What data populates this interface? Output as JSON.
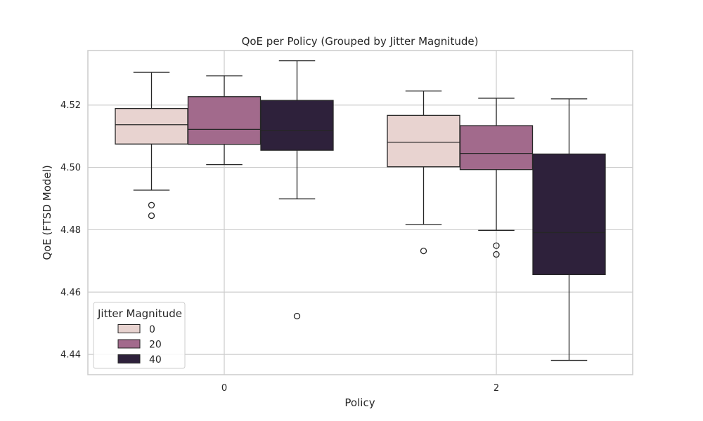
{
  "chart_data": {
    "type": "box",
    "title": "QoE per Policy (Grouped by Jitter Magnitude)",
    "xlabel": "Policy",
    "ylabel": "QoE (FTSD Model)",
    "categories": [
      "0",
      "2"
    ],
    "ylim": [
      4.4335,
      4.5375
    ],
    "yticks": [
      "4.44",
      "4.46",
      "4.48",
      "4.50",
      "4.52"
    ],
    "grid": true,
    "legend": {
      "title": "Jitter Magnitude",
      "placement": "lower-left"
    },
    "series": [
      {
        "name": "0",
        "color": "#e8d3d0",
        "boxes": [
          {
            "q1": 4.5075,
            "median": 4.5137,
            "q3": 4.5189,
            "whisker_low": 4.4927,
            "whisker_high": 4.5305,
            "outliers": [
              4.4879,
              4.4845
            ]
          },
          {
            "q1": 4.5002,
            "median": 4.5081,
            "q3": 4.5167,
            "whisker_low": 4.4817,
            "whisker_high": 4.5245,
            "outliers": [
              4.4732
            ]
          }
        ]
      },
      {
        "name": "20",
        "color": "#a26a8c",
        "boxes": [
          {
            "q1": 4.5074,
            "median": 4.5122,
            "q3": 4.5227,
            "whisker_low": 4.5009,
            "whisker_high": 4.5294,
            "outliers": []
          },
          {
            "q1": 4.4993,
            "median": 4.5045,
            "q3": 4.5134,
            "whisker_low": 4.4798,
            "whisker_high": 4.5222,
            "outliers": [
              4.4749,
              4.4721
            ]
          }
        ]
      },
      {
        "name": "40",
        "color": "#2e213b",
        "boxes": [
          {
            "q1": 4.5055,
            "median": 4.5118,
            "q3": 4.5215,
            "whisker_low": 4.4899,
            "whisker_high": 4.5342,
            "outliers": [
              4.4523
            ]
          },
          {
            "q1": 4.4656,
            "median": 4.4791,
            "q3": 4.5043,
            "whisker_low": 4.4381,
            "whisker_high": 4.522,
            "outliers": []
          }
        ]
      }
    ]
  }
}
